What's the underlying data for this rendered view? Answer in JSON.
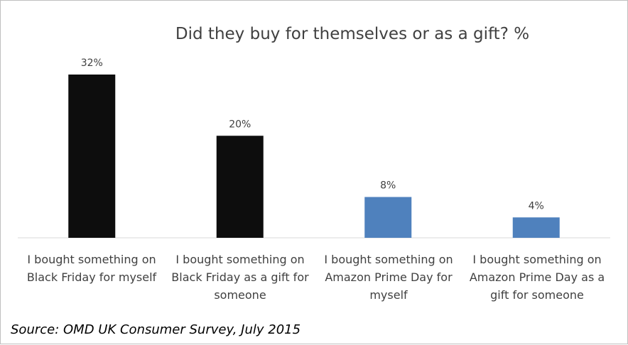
{
  "chart_data": {
    "type": "bar",
    "title": "Did they buy for themselves or as a gift?  %",
    "categories": [
      "I bought something on Black Friday for myself",
      "I bought something on Black Friday as a gift for someone",
      "I bought something on Amazon Prime Day for myself",
      "I bought something on Amazon Prime Day as a gift for someone"
    ],
    "values": [
      32,
      20,
      8,
      4
    ],
    "data_labels": [
      "32%",
      "20%",
      "8%",
      "4%"
    ],
    "bar_colors": [
      "#0d0d0d",
      "#0d0d0d",
      "#4f81bd",
      "#4f81bd"
    ],
    "xlabel": "",
    "ylabel": "",
    "ylim": [
      0,
      32
    ],
    "grid": false,
    "legend": "none"
  },
  "footer": {
    "source": "Source: OMD UK Consumer Survey, July 2015"
  },
  "colors": {
    "border": "#bfbfbf",
    "text": "#404040",
    "axis": "#d9d9d9"
  }
}
